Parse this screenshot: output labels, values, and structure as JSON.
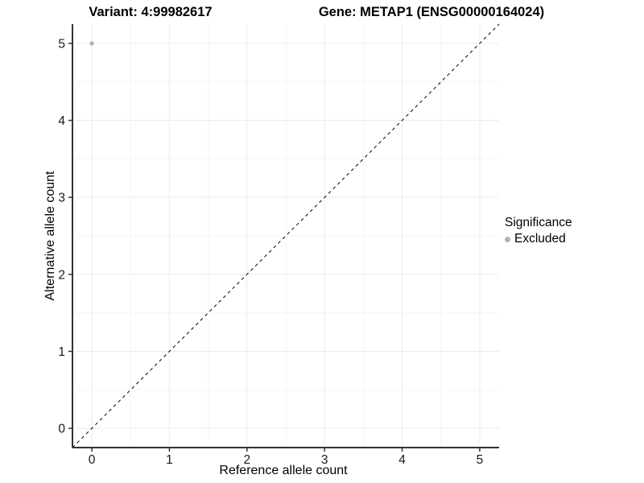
{
  "titles": {
    "left": "Variant: 4:99982617",
    "right": "Gene: METAP1 (ENSG00000164024)"
  },
  "chart_data": {
    "type": "scatter",
    "title": "Variant: 4:99982617",
    "subtitle": "Gene: METAP1 (ENSG00000164024)",
    "xlabel": "Reference allele count",
    "ylabel": "Alternative allele count",
    "xlim": [
      -0.25,
      5.25
    ],
    "ylim": [
      -0.25,
      5.25
    ],
    "x_ticks": [
      0,
      1,
      2,
      3,
      4,
      5
    ],
    "y_ticks": [
      0,
      1,
      2,
      3,
      4,
      5
    ],
    "x_minor_ticks": [
      0.5,
      1.5,
      2.5,
      3.5,
      4.5
    ],
    "y_minor_ticks": [
      0.5,
      1.5,
      2.5,
      3.5,
      4.5
    ],
    "grid": true,
    "points": [
      {
        "x": 0,
        "y": 5,
        "series": "Excluded"
      }
    ],
    "identity_line": {
      "slope": 1,
      "intercept": 0,
      "style": "dashed",
      "color": "#000000"
    },
    "legend": {
      "title": "Significance",
      "position": "right",
      "items": [
        {
          "label": "Excluded",
          "color": "#b3b3b3"
        }
      ]
    },
    "colors": {
      "point": "#b3b3b3",
      "grid_major": "#ebebeb",
      "grid_minor": "#f5f5f5",
      "axis_line": "#333333",
      "tick_text": "#1a1a1a"
    }
  }
}
